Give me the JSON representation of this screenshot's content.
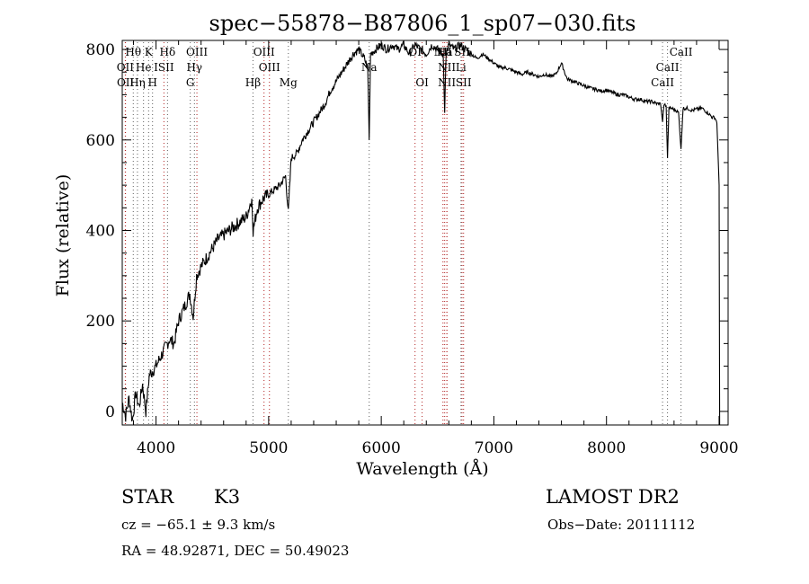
{
  "chart_data": {
    "type": "line",
    "title": "spec−55878−B87806_1_sp07−030.fits",
    "xlabel": "Wavelength (Å)",
    "ylabel": "Flux (relative)",
    "xlim": [
      3700,
      9080
    ],
    "ylim": [
      -30,
      820
    ],
    "x_ticks": [
      4000,
      5000,
      6000,
      7000,
      8000,
      9000
    ],
    "y_ticks": [
      0,
      200,
      400,
      600,
      800
    ],
    "grid": false,
    "series": [
      {
        "x": [
          3700,
          3730,
          3760,
          3790,
          3820,
          3850,
          3880,
          3910,
          3940,
          3970,
          4000,
          4040,
          4080,
          4120,
          4160,
          4200,
          4250,
          4300,
          4330,
          4360,
          4400,
          4450,
          4500,
          4550,
          4600,
          4650,
          4700,
          4750,
          4800,
          4850,
          4862,
          4900,
          4950,
          5000,
          5050,
          5100,
          5150,
          5175,
          5200,
          5250,
          5300,
          5350,
          5400,
          5450,
          5500,
          5550,
          5600,
          5650,
          5700,
          5750,
          5800,
          5850,
          5880,
          5893,
          5905,
          5950,
          6000,
          6050,
          6100,
          6150,
          6200,
          6250,
          6300,
          6350,
          6400,
          6450,
          6500,
          6550,
          6563,
          6575,
          6600,
          6650,
          6700,
          6750,
          6800,
          6850,
          6900,
          6950,
          7000,
          7050,
          7100,
          7150,
          7200,
          7250,
          7300,
          7350,
          7400,
          7450,
          7500,
          7550,
          7600,
          7650,
          7700,
          7750,
          7800,
          7850,
          7900,
          7950,
          8000,
          8050,
          8100,
          8150,
          8200,
          8250,
          8300,
          8350,
          8400,
          8450,
          8480,
          8498,
          8510,
          8530,
          8542,
          8555,
          8580,
          8620,
          8640,
          8662,
          8680,
          8720,
          8760,
          8800,
          8850,
          8900,
          8940,
          8960,
          8980,
          9000,
          9005
        ],
        "y": [
          20,
          -10,
          30,
          -20,
          40,
          10,
          60,
          0,
          80,
          90,
          100,
          120,
          140,
          160,
          150,
          200,
          230,
          260,
          210,
          300,
          320,
          340,
          360,
          380,
          390,
          400,
          410,
          420,
          430,
          470,
          400,
          450,
          470,
          480,
          490,
          500,
          520,
          440,
          560,
          570,
          600,
          620,
          640,
          660,
          680,
          710,
          730,
          750,
          770,
          790,
          800,
          780,
          760,
          600,
          790,
          800,
          810,
          800,
          810,
          800,
          810,
          790,
          810,
          800,
          790,
          810,
          800,
          790,
          660,
          790,
          810,
          800,
          810,
          800,
          790,
          780,
          790,
          780,
          770,
          760,
          760,
          755,
          750,
          745,
          750,
          745,
          740,
          745,
          740,
          745,
          770,
          735,
          730,
          725,
          720,
          715,
          712,
          708,
          710,
          705,
          700,
          700,
          695,
          690,
          690,
          685,
          685,
          680,
          680,
          640,
          680,
          675,
          560,
          670,
          670,
          665,
          660,
          580,
          670,
          670,
          665,
          668,
          670,
          660,
          650,
          650,
          640,
          500,
          -30
        ]
      }
    ],
    "line_ids": [
      {
        "label": "Hθ",
        "x": 3798,
        "row": 1,
        "color": "#606060"
      },
      {
        "label": "K",
        "x": 3934,
        "row": 1,
        "color": "#606060"
      },
      {
        "label": "Hδ",
        "x": 4102,
        "row": 1,
        "color": "#606060"
      },
      {
        "label": "OIII",
        "x": 4363,
        "row": 1,
        "color": "#b22222"
      },
      {
        "label": "OIII",
        "x": 4959,
        "row": 1,
        "color": "#b22222"
      },
      {
        "label": "OI",
        "x": 6300,
        "row": 1,
        "color": "#b22222"
      },
      {
        "label": "NII",
        "x": 6548,
        "row": 1,
        "color": "#b22222"
      },
      {
        "label": "Ha",
        "x": 6563,
        "row": 1,
        "color": "#b22222"
      },
      {
        "label": "SII",
        "x": 6717,
        "row": 1,
        "color": "#b22222"
      },
      {
        "label": "CaII",
        "x": 8662,
        "row": 1,
        "color": "#606060"
      },
      {
        "label": "OII",
        "x": 3727,
        "row": 2,
        "color": "#b22222"
      },
      {
        "label": "He",
        "x": 3889,
        "row": 2,
        "color": "#606060"
      },
      {
        "label": "ISII",
        "x": 4070,
        "row": 2,
        "color": "#b22222"
      },
      {
        "label": "Hγ",
        "x": 4341,
        "row": 2,
        "color": "#606060"
      },
      {
        "label": "OIII",
        "x": 5007,
        "row": 2,
        "color": "#b22222"
      },
      {
        "label": "Na",
        "x": 5893,
        "row": 2,
        "color": "#606060"
      },
      {
        "label": "NII",
        "x": 6583,
        "row": 2,
        "color": "#b22222"
      },
      {
        "label": "Li",
        "x": 6708,
        "row": 2,
        "color": "#606060"
      },
      {
        "label": "CaII",
        "x": 8542,
        "row": 2,
        "color": "#606060"
      },
      {
        "label": "OII",
        "x": 3729,
        "row": 3,
        "color": "#b22222"
      },
      {
        "label": "Hη",
        "x": 3835,
        "row": 3,
        "color": "#606060"
      },
      {
        "label": "H",
        "x": 3969,
        "row": 3,
        "color": "#606060"
      },
      {
        "label": "G",
        "x": 4304,
        "row": 3,
        "color": "#606060"
      },
      {
        "label": "Hβ",
        "x": 4861,
        "row": 3,
        "color": "#606060"
      },
      {
        "label": "Mg",
        "x": 5175,
        "row": 3,
        "color": "#606060"
      },
      {
        "label": "OI",
        "x": 6363,
        "row": 3,
        "color": "#b22222"
      },
      {
        "label": "NII",
        "x": 6583,
        "row": 3,
        "color": "#b22222"
      },
      {
        "label": "SII",
        "x": 6731,
        "row": 3,
        "color": "#b22222"
      },
      {
        "label": "CaII",
        "x": 8498,
        "row": 3,
        "color": "#606060"
      }
    ]
  },
  "info": {
    "class_label": "STAR",
    "subclass": "K3",
    "survey": "LAMOST DR2",
    "cz": "cz = −65.1 ± 9.3 km/s",
    "obs_date": "Obs−Date: 20111112",
    "coords": "RA =  48.92871, DEC =  50.49023"
  }
}
